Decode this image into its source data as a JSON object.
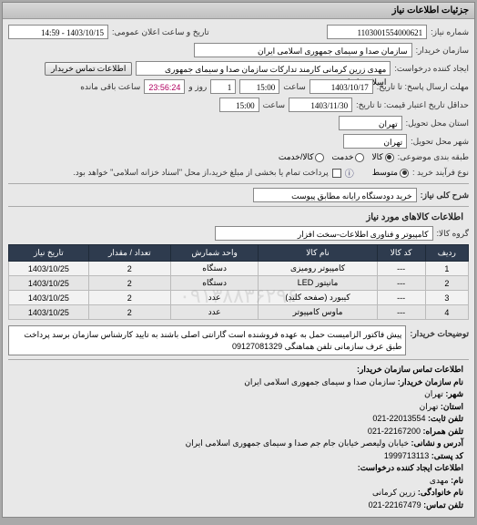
{
  "panel": {
    "title": "جزئیات اطلاعات نیاز"
  },
  "header": {
    "number_label": "شماره نیاز:",
    "number": "1103001554000621",
    "announce_label": "تاریخ و ساعت اعلان عمومی:",
    "announce": "1403/10/15 - 14:59",
    "buyer_label": "سازمان خریدار:",
    "buyer": "سازمان صدا و سیمای جمهوری اسلامی ایران",
    "creator_label": "ایجاد کننده درخواست:",
    "creator": "مهدی زرین کرمانی کارمند تدارکات سازمان صدا و سیمای جمهوری اسلامی ایران",
    "contact_btn": "اطلاعات تماس خریدار",
    "deadline_resp_label": "مهلت ارسال پاسخ: تا تاریخ:",
    "deadline_resp_date": "1403/10/17",
    "hour_label": "ساعت",
    "deadline_resp_time": "15:00",
    "days_remain": "1",
    "days_remain_label": "روز و",
    "countdown": "23:56:24",
    "countdown_label": "ساعت باقی مانده",
    "credit_label": "حداقل تاریخ اعتبار قیمت: تا تاریخ:",
    "credit_date": "1403/11/30",
    "credit_time": "15:00",
    "delivery_province_label": "استان محل تحویل:",
    "delivery_province": "تهران",
    "delivery_city_label": "شهر محل تحویل:",
    "delivery_city": "تهران",
    "budget_type_label": "طبقه بندی موضوعی:",
    "budget_opts": [
      "کالا",
      "خدمت",
      "کالا/خدمت"
    ],
    "budget_selected": 0,
    "payment_label": "نوع فرآیند خرید :",
    "payment_opts": [
      "متوسط"
    ],
    "payment_note_icon": "ⓘ",
    "payment_note": "پرداخت تمام یا بخشی از مبلغ خرید،از محل \"اسناد خزانه اسلامی\" خواهد بود.",
    "payment_chk": false
  },
  "need": {
    "title_label": "شرح کلی نیاز:",
    "title": "خرید دودستگاه رایانه مطابق پیوست"
  },
  "goods": {
    "section": "اطلاعات کالاهای مورد نیاز",
    "group_label": "گروه کالا:",
    "group": "کامپیوتر و فناوری اطلاعات-سخت افزار",
    "columns": [
      "ردیف",
      "کد کالا",
      "نام کالا",
      "واحد شمارش",
      "تعداد / مقدار",
      "تاریخ نیاز"
    ],
    "rows": [
      [
        "1",
        "---",
        "کامپیوتر رومیزی",
        "دستگاه",
        "2",
        "1403/10/25"
      ],
      [
        "2",
        "---",
        "مانیتور LED",
        "دستگاه",
        "2",
        "1403/10/25"
      ],
      [
        "3",
        "---",
        "کیبورد (صفحه کلید)",
        "عدد",
        "2",
        "1403/10/25"
      ],
      [
        "4",
        "---",
        "ماوس کامپیوتر",
        "عدد",
        "2",
        "1403/10/25"
      ]
    ]
  },
  "description": {
    "label": "توضیحات خریدار:",
    "text": "پیش فاکتور الزامیست حمل به عهده فروشنده است گارانتی اصلی باشند به تایید کارشناس سازمان برسد پرداخت طبق عرف سازمانی تلفن هماهنگی 09127081329"
  },
  "contact": {
    "section": "اطلاعات تماس سازمان خریدار:",
    "org_label": "نام سازمان خریدار:",
    "org": "سازمان صدا و سیمای جمهوری اسلامی ایران",
    "province_label": "شهر:",
    "province": "تهران",
    "phone_label": "استان:",
    "phone": "تهران",
    "tel_label": "تلفن ثابت:",
    "tel": "22013554-021",
    "fax_label": "تلفن همراه:",
    "fax": "22167200-021",
    "addr_label": "آدرس و نشانی:",
    "addr": "خیابان ولیعصر خیابان جام جم صدا و سیمای جمهوری اسلامی ایران",
    "post_label": "کد پستی:",
    "post": "1999713113",
    "req_creator_section": "اطلاعات ایجاد کننده درخواست:",
    "name_label": "نام:",
    "name": "مهدی",
    "family_label": "نام خانوادگی:",
    "family": "زرین کرمانی",
    "req_tel_label": "تلفن تماس:",
    "req_tel": "22167479-021"
  },
  "watermark": "۰۹۱۳۸۸۳۶۲۹۶",
  "colors": {
    "th_bg": "#2e3b4e",
    "panel_bg": "#e8e8e8",
    "body_bg": "#a9a9a9"
  }
}
